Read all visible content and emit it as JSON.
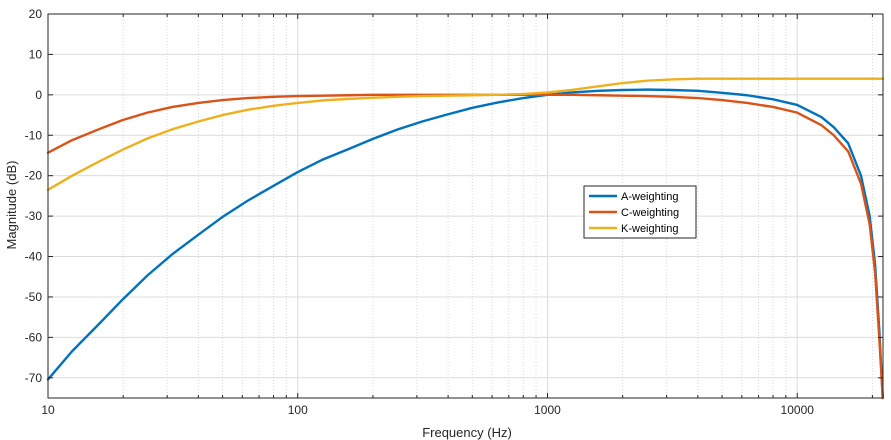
{
  "chart_data": {
    "type": "line",
    "title": "",
    "xlabel": "Frequency (Hz)",
    "ylabel": "Magnitude (dB)",
    "xscale": "log",
    "xlim": [
      10,
      22050
    ],
    "ylim": [
      -75,
      20
    ],
    "grid": true,
    "minor_grid": true,
    "legend_position": "center-right",
    "x_ticks": [
      {
        "value": 10,
        "label": "10"
      },
      {
        "value": 100,
        "label": "100"
      },
      {
        "value": 1000,
        "label": "1000"
      },
      {
        "value": 10000,
        "label": "10000"
      }
    ],
    "y_ticks": [
      {
        "value": 20,
        "label": "20"
      },
      {
        "value": 10,
        "label": "10"
      },
      {
        "value": 0,
        "label": "0"
      },
      {
        "value": -10,
        "label": "-10"
      },
      {
        "value": -20,
        "label": "-20"
      },
      {
        "value": -30,
        "label": "-30"
      },
      {
        "value": -40,
        "label": "-40"
      },
      {
        "value": -50,
        "label": "-50"
      },
      {
        "value": -60,
        "label": "-60"
      },
      {
        "value": -70,
        "label": "-70"
      }
    ],
    "series": [
      {
        "name": "A-weighting",
        "color": "#0072BD",
        "x": [
          10,
          12.5,
          16,
          20,
          25,
          31.5,
          40,
          50,
          63,
          80,
          100,
          125,
          160,
          200,
          250,
          315,
          400,
          500,
          630,
          800,
          1000,
          1250,
          1600,
          2000,
          2500,
          3150,
          4000,
          5000,
          6300,
          8000,
          10000,
          12500,
          14000,
          16000,
          18000,
          19500,
          20500,
          21300,
          22000
        ],
        "values": [
          -70.4,
          -63.4,
          -56.7,
          -50.5,
          -44.7,
          -39.4,
          -34.6,
          -30.2,
          -26.2,
          -22.5,
          -19.1,
          -16.1,
          -13.4,
          -10.9,
          -8.6,
          -6.6,
          -4.8,
          -3.2,
          -1.9,
          -0.8,
          0.0,
          0.6,
          1.0,
          1.2,
          1.3,
          1.2,
          1.0,
          0.5,
          -0.1,
          -1.1,
          -2.5,
          -5.5,
          -8,
          -12,
          -20,
          -30,
          -42,
          -58,
          -75
        ]
      },
      {
        "name": "C-weighting",
        "color": "#D95319",
        "x": [
          10,
          12.5,
          16,
          20,
          25,
          31.5,
          40,
          50,
          63,
          80,
          100,
          125,
          160,
          200,
          250,
          315,
          400,
          500,
          630,
          800,
          1000,
          1250,
          1600,
          2000,
          2500,
          3150,
          4000,
          5000,
          6300,
          8000,
          10000,
          12500,
          14000,
          16000,
          18000,
          19500,
          20500,
          21300,
          22000
        ],
        "values": [
          -14.3,
          -11.2,
          -8.5,
          -6.2,
          -4.4,
          -3.0,
          -2.0,
          -1.3,
          -0.8,
          -0.5,
          -0.3,
          -0.2,
          -0.1,
          0.0,
          0.0,
          0.0,
          0.0,
          0.0,
          0.0,
          0.0,
          0.0,
          0.0,
          -0.1,
          -0.2,
          -0.3,
          -0.5,
          -0.8,
          -1.3,
          -2.0,
          -3.0,
          -4.4,
          -7.5,
          -10,
          -14,
          -22,
          -32,
          -44,
          -60,
          -75
        ]
      },
      {
        "name": "K-weighting",
        "color": "#EDB120",
        "x": [
          10,
          12.5,
          16,
          20,
          25,
          31.5,
          40,
          50,
          63,
          80,
          100,
          125,
          160,
          200,
          250,
          315,
          400,
          500,
          630,
          800,
          1000,
          1250,
          1600,
          2000,
          2500,
          3150,
          4000,
          5000,
          6300,
          8000,
          10000,
          12500,
          16000,
          20000,
          22050
        ],
        "values": [
          -23.5,
          -20.0,
          -16.5,
          -13.5,
          -10.8,
          -8.5,
          -6.6,
          -5.0,
          -3.7,
          -2.7,
          -2.0,
          -1.4,
          -1.0,
          -0.7,
          -0.5,
          -0.3,
          -0.2,
          -0.1,
          0.0,
          0.2,
          0.6,
          1.2,
          2.1,
          2.9,
          3.5,
          3.8,
          4.0,
          4.0,
          4.0,
          4.0,
          4.0,
          4.0,
          4.0,
          4.0,
          4.0
        ]
      }
    ]
  }
}
